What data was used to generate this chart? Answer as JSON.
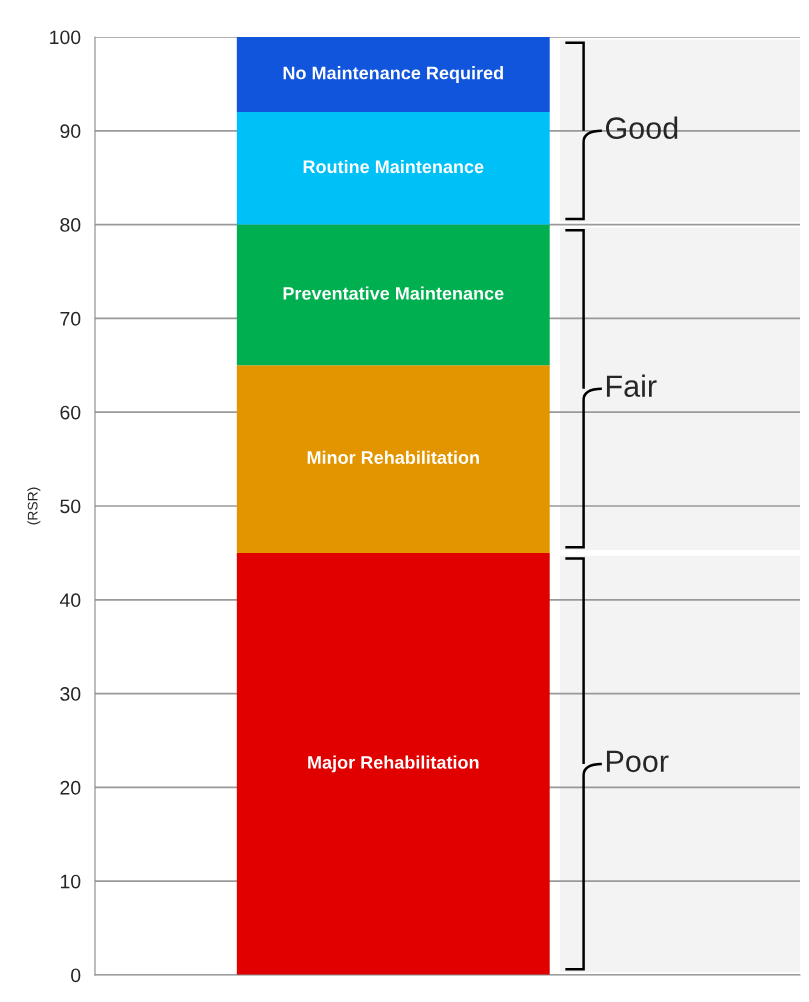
{
  "chart_data": {
    "type": "bar",
    "stacked": true,
    "ylabel": "(RSR)",
    "categories": [
      null
    ],
    "series": [
      {
        "name": "Major Rehabilitation",
        "color": "#e00000",
        "values": [
          45
        ]
      },
      {
        "name": "Minor Rehabilitation",
        "color": "#e39500",
        "values": [
          20
        ]
      },
      {
        "name": "Preventative Maintenance",
        "color": "#00b050",
        "values": [
          15
        ]
      },
      {
        "name": "Routine Maintenance",
        "color": "#00c0f8",
        "values": [
          12
        ]
      },
      {
        "name": "No Maintenance Required",
        "color": "#1155dd",
        "values": [
          8
        ]
      }
    ],
    "ylim": [
      0,
      100
    ],
    "yticks": [
      0,
      10,
      20,
      30,
      40,
      50,
      60,
      70,
      80,
      90,
      100
    ],
    "grid": "y",
    "legend": false,
    "bands": [
      {
        "axis": "y",
        "from": 0,
        "to": 45,
        "label": "Poor",
        "color": "#f3f3f3"
      },
      {
        "axis": "y",
        "from": 45,
        "to": 80,
        "label": "Fair",
        "color": "#f3f3f3"
      },
      {
        "axis": "y",
        "from": 80,
        "to": 100,
        "label": "Good",
        "color": "#f3f3f3"
      }
    ]
  }
}
